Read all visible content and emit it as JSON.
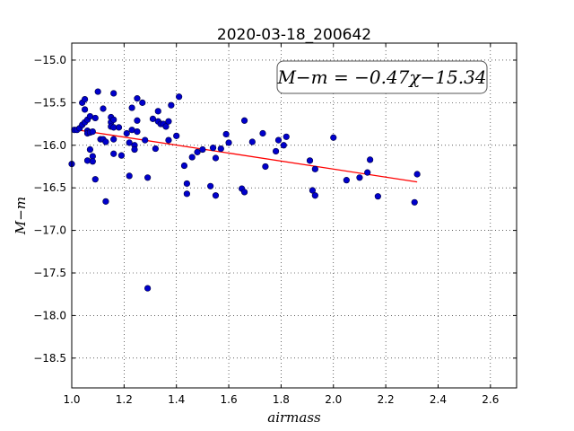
{
  "chart_data": {
    "type": "scatter",
    "title": "2020-03-18_200642",
    "xlabel": "airmass",
    "ylabel": "M−m",
    "xlim": [
      1.0,
      2.7
    ],
    "ylim": [
      -18.85,
      -14.8
    ],
    "y_inverted": true,
    "x_ticks": [
      1.0,
      1.2,
      1.4,
      1.6,
      1.8,
      2.0,
      2.2,
      2.4,
      2.6
    ],
    "x_tick_labels": [
      "1.0",
      "1.2",
      "1.4",
      "1.6",
      "1.8",
      "2.0",
      "2.2",
      "2.4",
      "2.6"
    ],
    "y_ticks": [
      -15.0,
      -15.5,
      -16.0,
      -16.5,
      -17.0,
      -17.5,
      -18.0,
      -18.5
    ],
    "y_tick_labels": [
      "−15.0",
      "−15.5",
      "−16.0",
      "−16.5",
      "−17.0",
      "−17.5",
      "−18.0",
      "−18.5"
    ],
    "grid": true,
    "annotation": "M−m = −0.47χ−15.34",
    "annotation_position": "top-right",
    "fit_line": {
      "slope": -0.47,
      "intercept": -15.34,
      "x_range": [
        1.0,
        2.32
      ],
      "color": "#ff0000"
    },
    "point_color": "#0000cc",
    "points": [
      {
        "x": 1.0,
        "y": -16.22
      },
      {
        "x": 1.01,
        "y": -15.82
      },
      {
        "x": 1.02,
        "y": -15.82
      },
      {
        "x": 1.03,
        "y": -15.8
      },
      {
        "x": 1.04,
        "y": -15.76
      },
      {
        "x": 1.04,
        "y": -15.5
      },
      {
        "x": 1.05,
        "y": -15.46
      },
      {
        "x": 1.05,
        "y": -15.58
      },
      {
        "x": 1.05,
        "y": -15.73
      },
      {
        "x": 1.06,
        "y": -15.7
      },
      {
        "x": 1.06,
        "y": -15.83
      },
      {
        "x": 1.06,
        "y": -15.86
      },
      {
        "x": 1.06,
        "y": -16.18
      },
      {
        "x": 1.07,
        "y": -15.66
      },
      {
        "x": 1.07,
        "y": -15.85
      },
      {
        "x": 1.07,
        "y": -16.05
      },
      {
        "x": 1.08,
        "y": -16.13
      },
      {
        "x": 1.08,
        "y": -16.19
      },
      {
        "x": 1.08,
        "y": -15.84
      },
      {
        "x": 1.09,
        "y": -15.68
      },
      {
        "x": 1.09,
        "y": -16.4
      },
      {
        "x": 1.1,
        "y": -15.37
      },
      {
        "x": 1.11,
        "y": -15.93
      },
      {
        "x": 1.12,
        "y": -15.57
      },
      {
        "x": 1.12,
        "y": -15.93
      },
      {
        "x": 1.13,
        "y": -15.96
      },
      {
        "x": 1.13,
        "y": -16.66
      },
      {
        "x": 1.15,
        "y": -15.67
      },
      {
        "x": 1.15,
        "y": -15.73
      },
      {
        "x": 1.15,
        "y": -15.78
      },
      {
        "x": 1.16,
        "y": -15.39
      },
      {
        "x": 1.16,
        "y": -15.7
      },
      {
        "x": 1.16,
        "y": -15.79
      },
      {
        "x": 1.16,
        "y": -15.93
      },
      {
        "x": 1.16,
        "y": -16.1
      },
      {
        "x": 1.18,
        "y": -15.79
      },
      {
        "x": 1.19,
        "y": -16.12
      },
      {
        "x": 1.21,
        "y": -15.86
      },
      {
        "x": 1.22,
        "y": -15.97
      },
      {
        "x": 1.22,
        "y": -16.36
      },
      {
        "x": 1.23,
        "y": -15.56
      },
      {
        "x": 1.23,
        "y": -15.82
      },
      {
        "x": 1.24,
        "y": -16.0
      },
      {
        "x": 1.24,
        "y": -16.05
      },
      {
        "x": 1.25,
        "y": -15.45
      },
      {
        "x": 1.25,
        "y": -15.71
      },
      {
        "x": 1.25,
        "y": -15.84
      },
      {
        "x": 1.27,
        "y": -15.5
      },
      {
        "x": 1.28,
        "y": -15.94
      },
      {
        "x": 1.29,
        "y": -16.38
      },
      {
        "x": 1.29,
        "y": -17.68
      },
      {
        "x": 1.31,
        "y": -15.69
      },
      {
        "x": 1.32,
        "y": -16.04
      },
      {
        "x": 1.33,
        "y": -15.6
      },
      {
        "x": 1.33,
        "y": -15.72
      },
      {
        "x": 1.34,
        "y": -15.75
      },
      {
        "x": 1.35,
        "y": -15.75
      },
      {
        "x": 1.36,
        "y": -15.78
      },
      {
        "x": 1.37,
        "y": -15.72
      },
      {
        "x": 1.37,
        "y": -15.94
      },
      {
        "x": 1.38,
        "y": -15.53
      },
      {
        "x": 1.4,
        "y": -15.89
      },
      {
        "x": 1.41,
        "y": -15.43
      },
      {
        "x": 1.43,
        "y": -16.24
      },
      {
        "x": 1.44,
        "y": -16.45
      },
      {
        "x": 1.44,
        "y": -16.57
      },
      {
        "x": 1.46,
        "y": -16.14
      },
      {
        "x": 1.48,
        "y": -16.08
      },
      {
        "x": 1.5,
        "y": -16.05
      },
      {
        "x": 1.53,
        "y": -16.48
      },
      {
        "x": 1.54,
        "y": -16.03
      },
      {
        "x": 1.55,
        "y": -16.15
      },
      {
        "x": 1.55,
        "y": -16.59
      },
      {
        "x": 1.57,
        "y": -16.04
      },
      {
        "x": 1.59,
        "y": -15.87
      },
      {
        "x": 1.6,
        "y": -15.97
      },
      {
        "x": 1.65,
        "y": -16.51
      },
      {
        "x": 1.66,
        "y": -15.71
      },
      {
        "x": 1.66,
        "y": -16.55
      },
      {
        "x": 1.69,
        "y": -15.96
      },
      {
        "x": 1.73,
        "y": -15.86
      },
      {
        "x": 1.74,
        "y": -16.25
      },
      {
        "x": 1.78,
        "y": -16.07
      },
      {
        "x": 1.79,
        "y": -15.94
      },
      {
        "x": 1.81,
        "y": -16.0
      },
      {
        "x": 1.82,
        "y": -15.9
      },
      {
        "x": 1.91,
        "y": -16.18
      },
      {
        "x": 1.92,
        "y": -16.53
      },
      {
        "x": 1.93,
        "y": -16.59
      },
      {
        "x": 1.93,
        "y": -16.28
      },
      {
        "x": 2.0,
        "y": -15.91
      },
      {
        "x": 2.05,
        "y": -16.41
      },
      {
        "x": 2.1,
        "y": -16.38
      },
      {
        "x": 2.13,
        "y": -16.32
      },
      {
        "x": 2.14,
        "y": -16.17
      },
      {
        "x": 2.17,
        "y": -16.6
      },
      {
        "x": 2.31,
        "y": -16.67
      },
      {
        "x": 2.32,
        "y": -16.34
      }
    ]
  }
}
